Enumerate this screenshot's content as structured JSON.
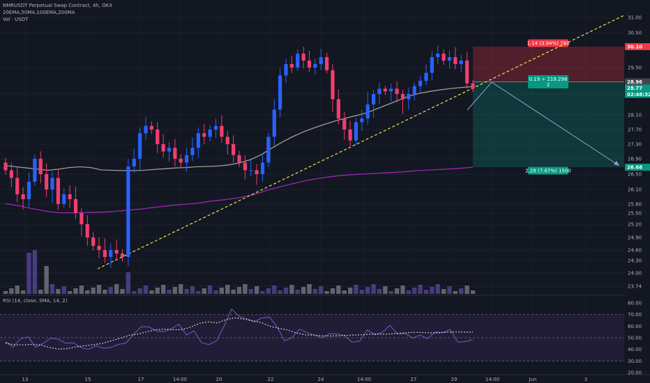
{
  "header": {
    "title": "NMRUSDT Perpetual Swap Contract, 4h, OKX",
    "indicators": "20EMA,50MA,100EMA,200MA",
    "volume": "Vol · USDT",
    "rsi": "RSI (14, close, SMA, 14, 2)"
  },
  "colors": {
    "up": "#2962ff",
    "down": "#f23d6e",
    "ma50": "#9e9e9e",
    "ma200": "#9c27b0",
    "trendline": "#e8e84a",
    "stop_zone": "#f23645",
    "target_zone": "#089981",
    "rsi_line": "#7e57c2"
  },
  "price_axis": {
    "ticks": [
      "31.00",
      "30.50",
      "29.50",
      "28.50",
      "28.10",
      "27.70",
      "27.30",
      "26.90",
      "26.50",
      "26.10",
      "25.80",
      "25.50",
      "25.20",
      "24.90",
      "24.60",
      "24.30",
      "24.00",
      "23.74"
    ],
    "rsi_ticks": [
      "80.00",
      "70.00",
      "60.00",
      "50.00",
      "40.00",
      "30.00",
      "20.00"
    ]
  },
  "price_tags": {
    "stop": "30.10",
    "entry": "28.96",
    "last": "28.77",
    "countdown": "02:48:32",
    "target": "26.68"
  },
  "position_labels": {
    "stop": "1.14 (3.94%) 750",
    "entry_line1": "0.19 ÷ 219.298",
    "entry_line2": "2",
    "target": "2.28 (7.87%) 1500"
  },
  "time_axis": [
    "13",
    "15",
    "17",
    "14:00",
    "20",
    "22",
    "24",
    "14:00",
    "27",
    "29",
    "14:00",
    "Jun",
    "3"
  ],
  "chart_data": {
    "type": "candlestick",
    "series": [
      {
        "name": "NMRUSDT Perpetual Swap Contract, 4h, OKX",
        "values": [
          26.6,
          26.4,
          26.0,
          25.9,
          26.3,
          26.9,
          26.5,
          26.1,
          26.4,
          25.8,
          26.0,
          25.9,
          25.5,
          25.2,
          24.9,
          24.7,
          24.6,
          24.4,
          24.6,
          24.5,
          24.4,
          26.7,
          26.9,
          27.6,
          27.8,
          27.7,
          27.3,
          27.1,
          27.2,
          26.9,
          26.8,
          27.0,
          27.2,
          27.6,
          27.5,
          27.7,
          27.8,
          27.5,
          27.3,
          27.0,
          26.8,
          26.6,
          26.6,
          26.5,
          26.8,
          27.5,
          28.2,
          29.2,
          29.6,
          29.5,
          29.9,
          29.7,
          29.5,
          29.6,
          29.8,
          29.4,
          28.4,
          28.0,
          27.7,
          27.4,
          27.9,
          28.0,
          28.3,
          28.5,
          28.7,
          28.6,
          28.7,
          28.5,
          28.4,
          28.5,
          28.8,
          29.0,
          29.3,
          29.8,
          29.9,
          29.7,
          29.8,
          29.6,
          29.7,
          28.9,
          28.7
        ]
      }
    ],
    "moving_averages": [
      {
        "name": "50MA",
        "values": [
          26.72,
          26.69,
          26.66,
          26.63,
          26.6,
          26.63,
          26.67,
          26.69,
          26.67,
          26.61,
          26.6,
          26.59,
          26.59,
          26.6,
          26.62,
          26.64,
          26.66,
          26.67,
          26.69,
          26.7,
          26.71,
          26.74,
          26.79,
          26.87,
          27.0,
          27.18,
          27.35,
          27.5,
          27.63,
          27.74,
          27.84,
          27.93,
          28.01,
          28.08,
          28.14,
          28.22,
          28.3,
          28.38,
          28.46,
          28.53,
          28.6,
          28.66,
          28.71,
          28.75,
          28.78
        ]
      },
      {
        "name": "200MA",
        "values": [
          25.81,
          25.74,
          25.64,
          25.56,
          25.51,
          25.51,
          25.52,
          25.53,
          25.56,
          25.6,
          25.64,
          25.7,
          25.75,
          25.79,
          25.82,
          25.86,
          25.89,
          25.93,
          25.99,
          26.08,
          26.17,
          26.26,
          26.34,
          26.4,
          26.45,
          26.48,
          26.5,
          26.52,
          26.54,
          26.56,
          26.59,
          26.61,
          26.63,
          26.65,
          26.68
        ]
      }
    ],
    "rsi": [
      46.5,
      42.0,
      49.2,
      50.8,
      41.8,
      45.2,
      49.7,
      48.7,
      45.2,
      45.6,
      41.5,
      40.0,
      43.1,
      41.0,
      41.7,
      44.3,
      45.5,
      53.1,
      59.4,
      59.4,
      55.8,
      55.1,
      57.7,
      61.6,
      52.4,
      55.8,
      45.7,
      44.1,
      47.3,
      60.2,
      74.7,
      68.3,
      66.3,
      63.7,
      67.1,
      67.9,
      59.8,
      47.3,
      50.0,
      57.3,
      54.4,
      52.2,
      50.1,
      53.5,
      53.3,
      51.6,
      46.1,
      47.1,
      56.8,
      52.5,
      54.7,
      60.7,
      53.2,
      53.8,
      49.8,
      52.2,
      49.2,
      54.9,
      54.4,
      57.1,
      46.1,
      46.7,
      48.5
    ],
    "rsi_sma": [
      45.4,
      43.9,
      43.9,
      44.3,
      43.7,
      41.6,
      40.2,
      40.7,
      42.2,
      43.1,
      44.0,
      45.2,
      47.4,
      49.5,
      52.1,
      53.1,
      55.1,
      56.9,
      57.3,
      56.9,
      57.0,
      59.2,
      62.4,
      63.7,
      62.8,
      65.6,
      67.2,
      66.1,
      64.7,
      63.0,
      59.9,
      58.1,
      56.7,
      54.0,
      52.5,
      52.3,
      51.6,
      51.5,
      51.8,
      52.2,
      52.4,
      52.8,
      53.3,
      53.0,
      53.5,
      54.0,
      54.6,
      54.6,
      54.2,
      54.2,
      54.8,
      55.0,
      54.8,
      54.8
    ],
    "price_range": [
      23.74,
      31.2
    ],
    "rsi_range": [
      20,
      80
    ],
    "position": {
      "entry": 28.96,
      "stop": 30.1,
      "target": 26.68
    }
  }
}
